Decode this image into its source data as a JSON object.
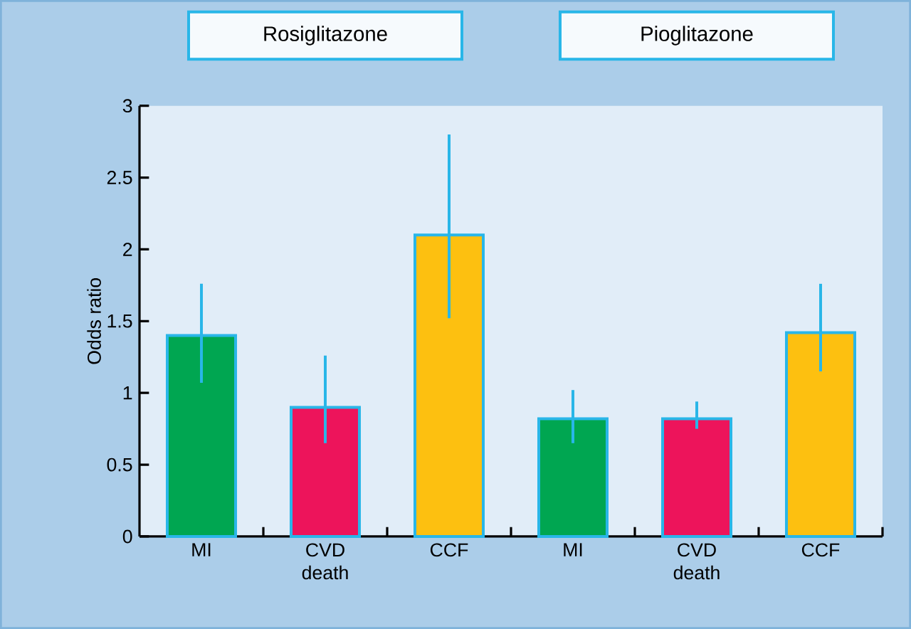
{
  "chart_data": {
    "type": "bar",
    "categories": [
      "MI",
      "CVD death",
      "CCF",
      "MI",
      "CVD death",
      "CCF"
    ],
    "values": [
      1.4,
      0.9,
      2.1,
      0.82,
      0.82,
      1.42
    ],
    "colors": [
      "#00a651",
      "#ed145b",
      "#fdc010",
      "#00a651",
      "#ed145b",
      "#fdc010"
    ],
    "errors": [
      [
        1.07,
        1.76
      ],
      [
        0.65,
        1.26
      ],
      [
        1.52,
        2.8
      ],
      [
        0.65,
        1.02
      ],
      [
        0.75,
        0.94
      ],
      [
        1.15,
        1.76
      ]
    ],
    "ylabel": "Odds ratio",
    "ylim": [
      0,
      3
    ],
    "yticks": [
      0,
      0.5,
      1,
      1.5,
      2,
      2.5,
      3
    ],
    "annotations": [
      "Rosiglitazone",
      "Pioglitazone"
    ],
    "grid": false
  }
}
